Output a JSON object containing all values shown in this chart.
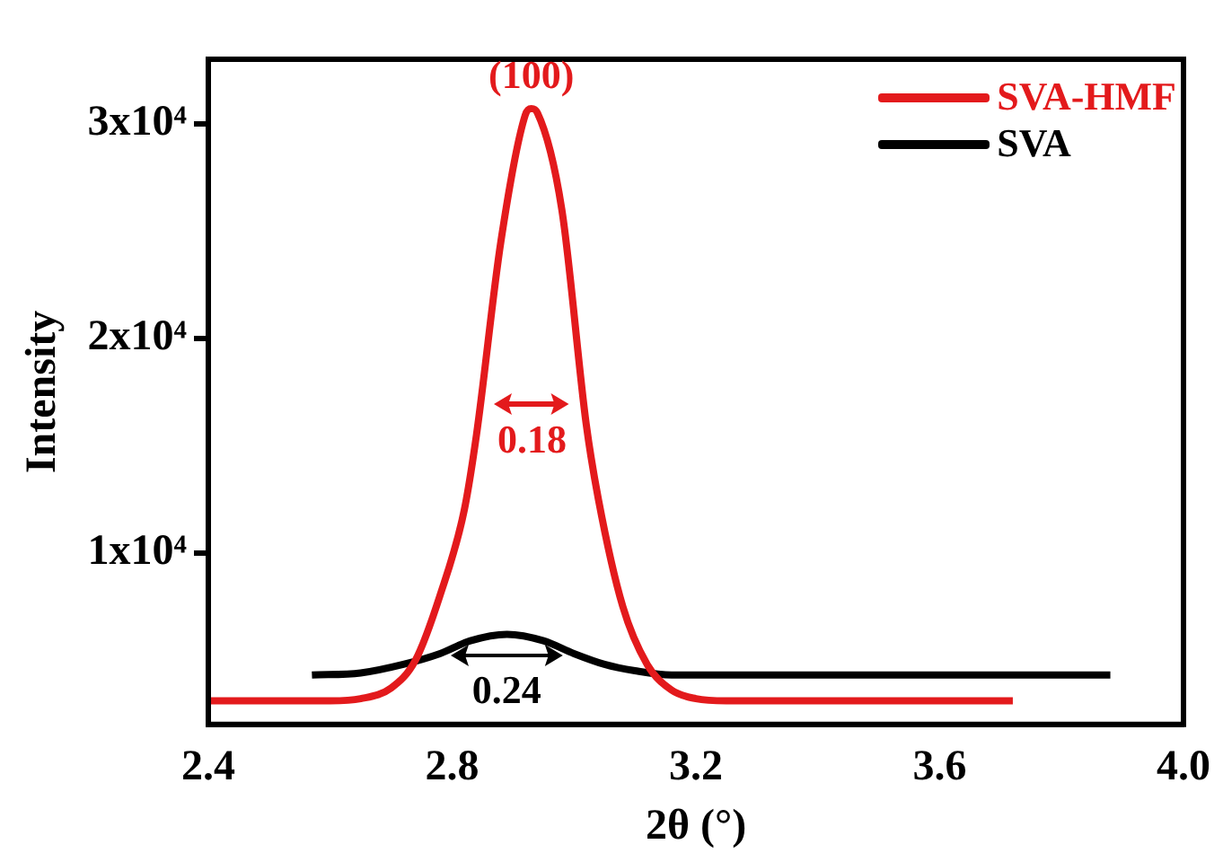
{
  "chart_data": {
    "type": "line",
    "xlabel": "2θ (°)",
    "ylabel": "Intensity",
    "xlim": [
      2.4,
      4.0
    ],
    "xticks": [
      2.4,
      2.8,
      3.2,
      3.6,
      {
        "value": 4.0,
        "label": "4.0"
      }
    ],
    "ylim": [
      2000,
      33000
    ],
    "yticks": [
      {
        "value": 10000,
        "label": "1x10⁴"
      },
      {
        "value": 20000,
        "label": "2x10⁴"
      },
      {
        "value": 30000,
        "label": "3x10⁴"
      }
    ],
    "grid": false,
    "legend": "top right",
    "marker": "none",
    "line_style": "solid",
    "series": [
      {
        "name": "SVA-HMF",
        "color": "#e31a1c",
        "x": [
          2.4,
          2.6,
          2.65,
          2.7,
          2.74,
          2.78,
          2.82,
          2.84,
          2.88,
          2.92,
          2.93,
          2.94,
          2.98,
          3.02,
          3.04,
          3.08,
          3.12,
          3.16,
          3.2,
          3.25,
          3.72
        ],
        "values": [
          3100,
          3100,
          3200,
          3700,
          5000,
          8000,
          12000,
          15500,
          24500,
          30400,
          30700,
          30500,
          26000,
          16000,
          12500,
          7500,
          4800,
          3600,
          3200,
          3100,
          3100
        ]
      },
      {
        "name": "SVA",
        "color": "#000000",
        "x": [
          2.57,
          2.65,
          2.72,
          2.78,
          2.83,
          2.89,
          2.95,
          3.0,
          3.05,
          3.1,
          3.16,
          3.25,
          3.88
        ],
        "values": [
          4300,
          4400,
          4800,
          5300,
          5900,
          6200,
          5900,
          5300,
          4800,
          4500,
          4300,
          4300,
          4300
        ]
      }
    ],
    "annotations": [
      "(100)",
      "0.18",
      "0.24"
    ]
  }
}
